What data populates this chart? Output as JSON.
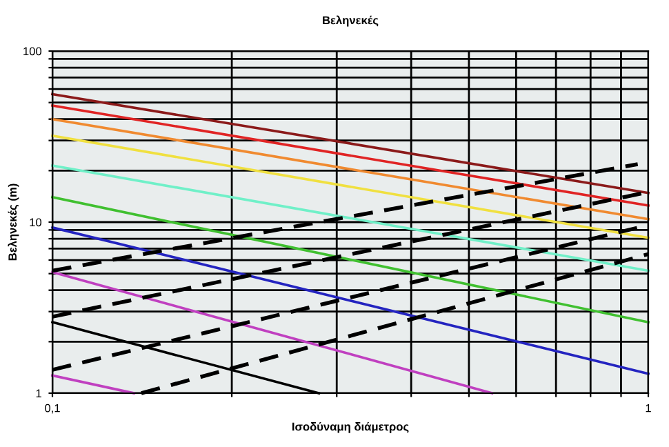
{
  "chart_data": {
    "type": "line",
    "title": "Βεληνεκές",
    "xlabel": "Ισοδύναμη διάμετρος",
    "ylabel": "Βεληνεκές (m)",
    "log": "xy",
    "grid": true,
    "legend": false,
    "marker": "none",
    "line_style": "solid",
    "xlim": [
      0.1,
      1
    ],
    "ylim": [
      1,
      100
    ],
    "xticks": [
      {
        "value": 0.1,
        "label": "0,1"
      },
      {
        "value": 0.2,
        "label": null
      },
      {
        "value": 0.3,
        "label": null
      },
      {
        "value": 0.4,
        "label": null
      },
      {
        "value": 0.5,
        "label": null
      },
      {
        "value": 0.6,
        "label": null
      },
      {
        "value": 0.7,
        "label": null
      },
      {
        "value": 0.8,
        "label": null
      },
      {
        "value": 0.9,
        "label": null
      },
      1
    ],
    "yticks": [
      1,
      {
        "value": 2,
        "label": null
      },
      {
        "value": 3,
        "label": null
      },
      {
        "value": 4,
        "label": null
      },
      {
        "value": 5,
        "label": null
      },
      {
        "value": 6,
        "label": null
      },
      {
        "value": 7,
        "label": null
      },
      {
        "value": 8,
        "label": null
      },
      {
        "value": 9,
        "label": null
      },
      10,
      {
        "value": 20,
        "label": null
      },
      {
        "value": 30,
        "label": null
      },
      {
        "value": 40,
        "label": null
      },
      {
        "value": 50,
        "label": null
      },
      {
        "value": 60,
        "label": null
      },
      {
        "value": 70,
        "label": null
      },
      {
        "value": 80,
        "label": null
      },
      {
        "value": 90,
        "label": null
      },
      100
    ],
    "series": [
      {
        "color": "#8b1a1a",
        "x": [
          0.1,
          1
        ],
        "values": [
          56,
          14.8
        ]
      },
      {
        "color": "#e02424",
        "x": [
          0.1,
          1
        ],
        "values": [
          48,
          12.5
        ]
      },
      {
        "color": "#f08a30",
        "x": [
          0.1,
          1
        ],
        "values": [
          40,
          10.4
        ]
      },
      {
        "color": "#f0e040",
        "x": [
          0.1,
          1
        ],
        "values": [
          32,
          8.1
        ]
      },
      {
        "color": "#70f0c8",
        "x": [
          0.1,
          1
        ],
        "values": [
          21.4,
          5.2
        ]
      },
      {
        "color": "#40c030",
        "x": [
          0.1,
          1
        ],
        "values": [
          14,
          2.6
        ]
      },
      {
        "color": "#2424c0",
        "x": [
          0.1,
          1
        ],
        "values": [
          9.3,
          1.3
        ]
      },
      {
        "color": "#c040c0",
        "x": [
          0.1,
          0.547
        ],
        "values": [
          5.1,
          1
        ]
      },
      {
        "color": "#000000",
        "x": [
          0.1,
          0.28
        ],
        "values": [
          2.6,
          1
        ]
      },
      {
        "color": "#c040c0",
        "x": [
          0.1,
          0.137
        ],
        "values": [
          1.27,
          1
        ]
      },
      {
        "color": "#000000",
        "line_style": "dashed",
        "x": [
          0.1,
          0.96
        ],
        "values": [
          5.2,
          21.8
        ]
      },
      {
        "color": "#000000",
        "line_style": "dashed",
        "x": [
          0.1,
          1
        ],
        "values": [
          2.8,
          15
        ]
      },
      {
        "color": "#000000",
        "line_style": "dashed",
        "x": [
          0.1,
          1
        ],
        "values": [
          1.37,
          9.6
        ]
      },
      {
        "color": "#000000",
        "line_style": "dashed",
        "x": [
          0.141,
          1
        ],
        "values": [
          1,
          6.5
        ]
      }
    ]
  }
}
